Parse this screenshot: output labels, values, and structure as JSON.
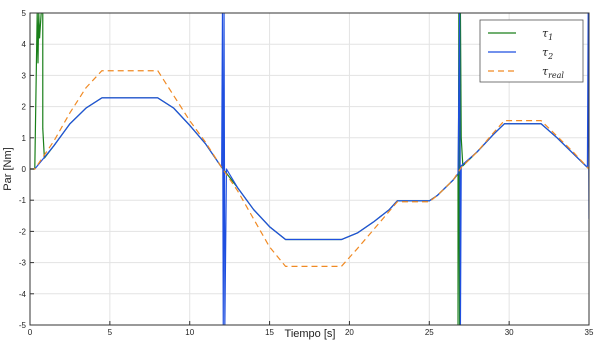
{
  "chart_data": {
    "type": "line",
    "title": "",
    "xlabel": "Tiempo [s]",
    "ylabel": "Par [Nm]",
    "xlim": [
      0,
      35
    ],
    "ylim": [
      -5,
      5
    ],
    "x_ticks": [
      0,
      5,
      10,
      15,
      20,
      25,
      30,
      35
    ],
    "y_ticks": [
      -5,
      -4,
      -3,
      -2,
      -1,
      0,
      1,
      2,
      3,
      4,
      5
    ],
    "grid": true,
    "legend_position": "top-right",
    "series": [
      {
        "name": "τ1",
        "legend_main": "τ",
        "legend_sub": "1",
        "color": "#1a7f1a",
        "style": "solid",
        "points": [
          [
            0,
            0
          ],
          [
            0.3,
            0
          ],
          [
            0.45,
            5
          ],
          [
            0.5,
            3.4
          ],
          [
            0.55,
            5
          ],
          [
            0.6,
            4.2
          ],
          [
            0.7,
            5
          ],
          [
            0.8,
            5
          ],
          [
            0.8,
            1.3
          ],
          [
            0.9,
            0.35
          ],
          [
            1.5,
            0.75
          ],
          [
            2.5,
            1.45
          ],
          [
            3.5,
            1.95
          ],
          [
            4.5,
            2.28
          ],
          [
            8.0,
            2.28
          ],
          [
            9.0,
            1.95
          ],
          [
            10.0,
            1.4
          ],
          [
            11.0,
            0.8
          ],
          [
            12.0,
            0.05
          ],
          [
            12.1,
            0
          ],
          [
            13.0,
            -0.6
          ],
          [
            14.0,
            -1.3
          ],
          [
            15.0,
            -1.85
          ],
          [
            16.0,
            -2.26
          ],
          [
            19.5,
            -2.26
          ],
          [
            20.5,
            -2.05
          ],
          [
            21.5,
            -1.7
          ],
          [
            22.5,
            -1.3
          ],
          [
            23.0,
            -1.02
          ],
          [
            25.0,
            -1.02
          ],
          [
            25.5,
            -0.85
          ],
          [
            26.5,
            -0.35
          ],
          [
            26.8,
            -0.15
          ],
          [
            26.8,
            -5
          ],
          [
            26.85,
            5
          ],
          [
            26.9,
            -5
          ],
          [
            26.95,
            5
          ],
          [
            27.0,
            1.0
          ],
          [
            27.1,
            0.1
          ],
          [
            28.0,
            0.55
          ],
          [
            29.0,
            1.1
          ],
          [
            29.7,
            1.45
          ],
          [
            32.0,
            1.45
          ],
          [
            33.0,
            1.0
          ],
          [
            34.0,
            0.5
          ],
          [
            35.0,
            0
          ]
        ]
      },
      {
        "name": "τ2",
        "legend_main": "τ",
        "legend_sub": "2",
        "color": "#1f4fe0",
        "style": "solid",
        "points": [
          [
            0,
            0
          ],
          [
            0.3,
            0
          ],
          [
            1.5,
            0.75
          ],
          [
            2.5,
            1.45
          ],
          [
            3.5,
            1.95
          ],
          [
            4.5,
            2.28
          ],
          [
            8.0,
            2.28
          ],
          [
            9.0,
            1.95
          ],
          [
            10.0,
            1.4
          ],
          [
            11.0,
            0.8
          ],
          [
            12.0,
            0.05
          ],
          [
            12.05,
            5
          ],
          [
            12.1,
            -5
          ],
          [
            12.15,
            5
          ],
          [
            12.2,
            -5
          ],
          [
            12.3,
            0
          ],
          [
            13.0,
            -0.6
          ],
          [
            14.0,
            -1.3
          ],
          [
            15.0,
            -1.85
          ],
          [
            16.0,
            -2.26
          ],
          [
            19.5,
            -2.26
          ],
          [
            20.5,
            -2.05
          ],
          [
            21.5,
            -1.7
          ],
          [
            22.5,
            -1.3
          ],
          [
            23.0,
            -1.02
          ],
          [
            25.0,
            -1.02
          ],
          [
            25.5,
            -0.85
          ],
          [
            26.5,
            -0.35
          ],
          [
            26.8,
            -0.15
          ],
          [
            26.9,
            5
          ],
          [
            26.95,
            -5
          ],
          [
            27.0,
            0.1
          ],
          [
            28.0,
            0.55
          ],
          [
            29.0,
            1.1
          ],
          [
            29.7,
            1.45
          ],
          [
            32.0,
            1.45
          ],
          [
            33.0,
            1.0
          ],
          [
            34.0,
            0.5
          ],
          [
            34.9,
            0.05
          ],
          [
            34.95,
            5
          ],
          [
            35.0,
            -1.6
          ]
        ]
      },
      {
        "name": "τreal",
        "legend_main": "τ",
        "legend_sub": "real",
        "color": "#f08a24",
        "style": "dashed",
        "points": [
          [
            0,
            0
          ],
          [
            0.3,
            0
          ],
          [
            1.5,
            0.9
          ],
          [
            2.5,
            1.8
          ],
          [
            3.5,
            2.6
          ],
          [
            4.5,
            3.15
          ],
          [
            8.0,
            3.15
          ],
          [
            9.0,
            2.35
          ],
          [
            10.0,
            1.55
          ],
          [
            11.0,
            0.85
          ],
          [
            12.0,
            0.05
          ],
          [
            13.0,
            -0.7
          ],
          [
            14.0,
            -1.6
          ],
          [
            15.0,
            -2.5
          ],
          [
            16.0,
            -3.12
          ],
          [
            19.5,
            -3.12
          ],
          [
            20.5,
            -2.55
          ],
          [
            21.5,
            -1.95
          ],
          [
            22.5,
            -1.35
          ],
          [
            23.0,
            -1.05
          ],
          [
            25.0,
            -1.05
          ],
          [
            25.5,
            -0.85
          ],
          [
            26.5,
            -0.35
          ],
          [
            27.0,
            0.05
          ],
          [
            28.0,
            0.55
          ],
          [
            29.0,
            1.15
          ],
          [
            29.7,
            1.55
          ],
          [
            32.0,
            1.55
          ],
          [
            33.0,
            1.05
          ],
          [
            34.0,
            0.55
          ],
          [
            35.0,
            0
          ]
        ]
      }
    ]
  }
}
